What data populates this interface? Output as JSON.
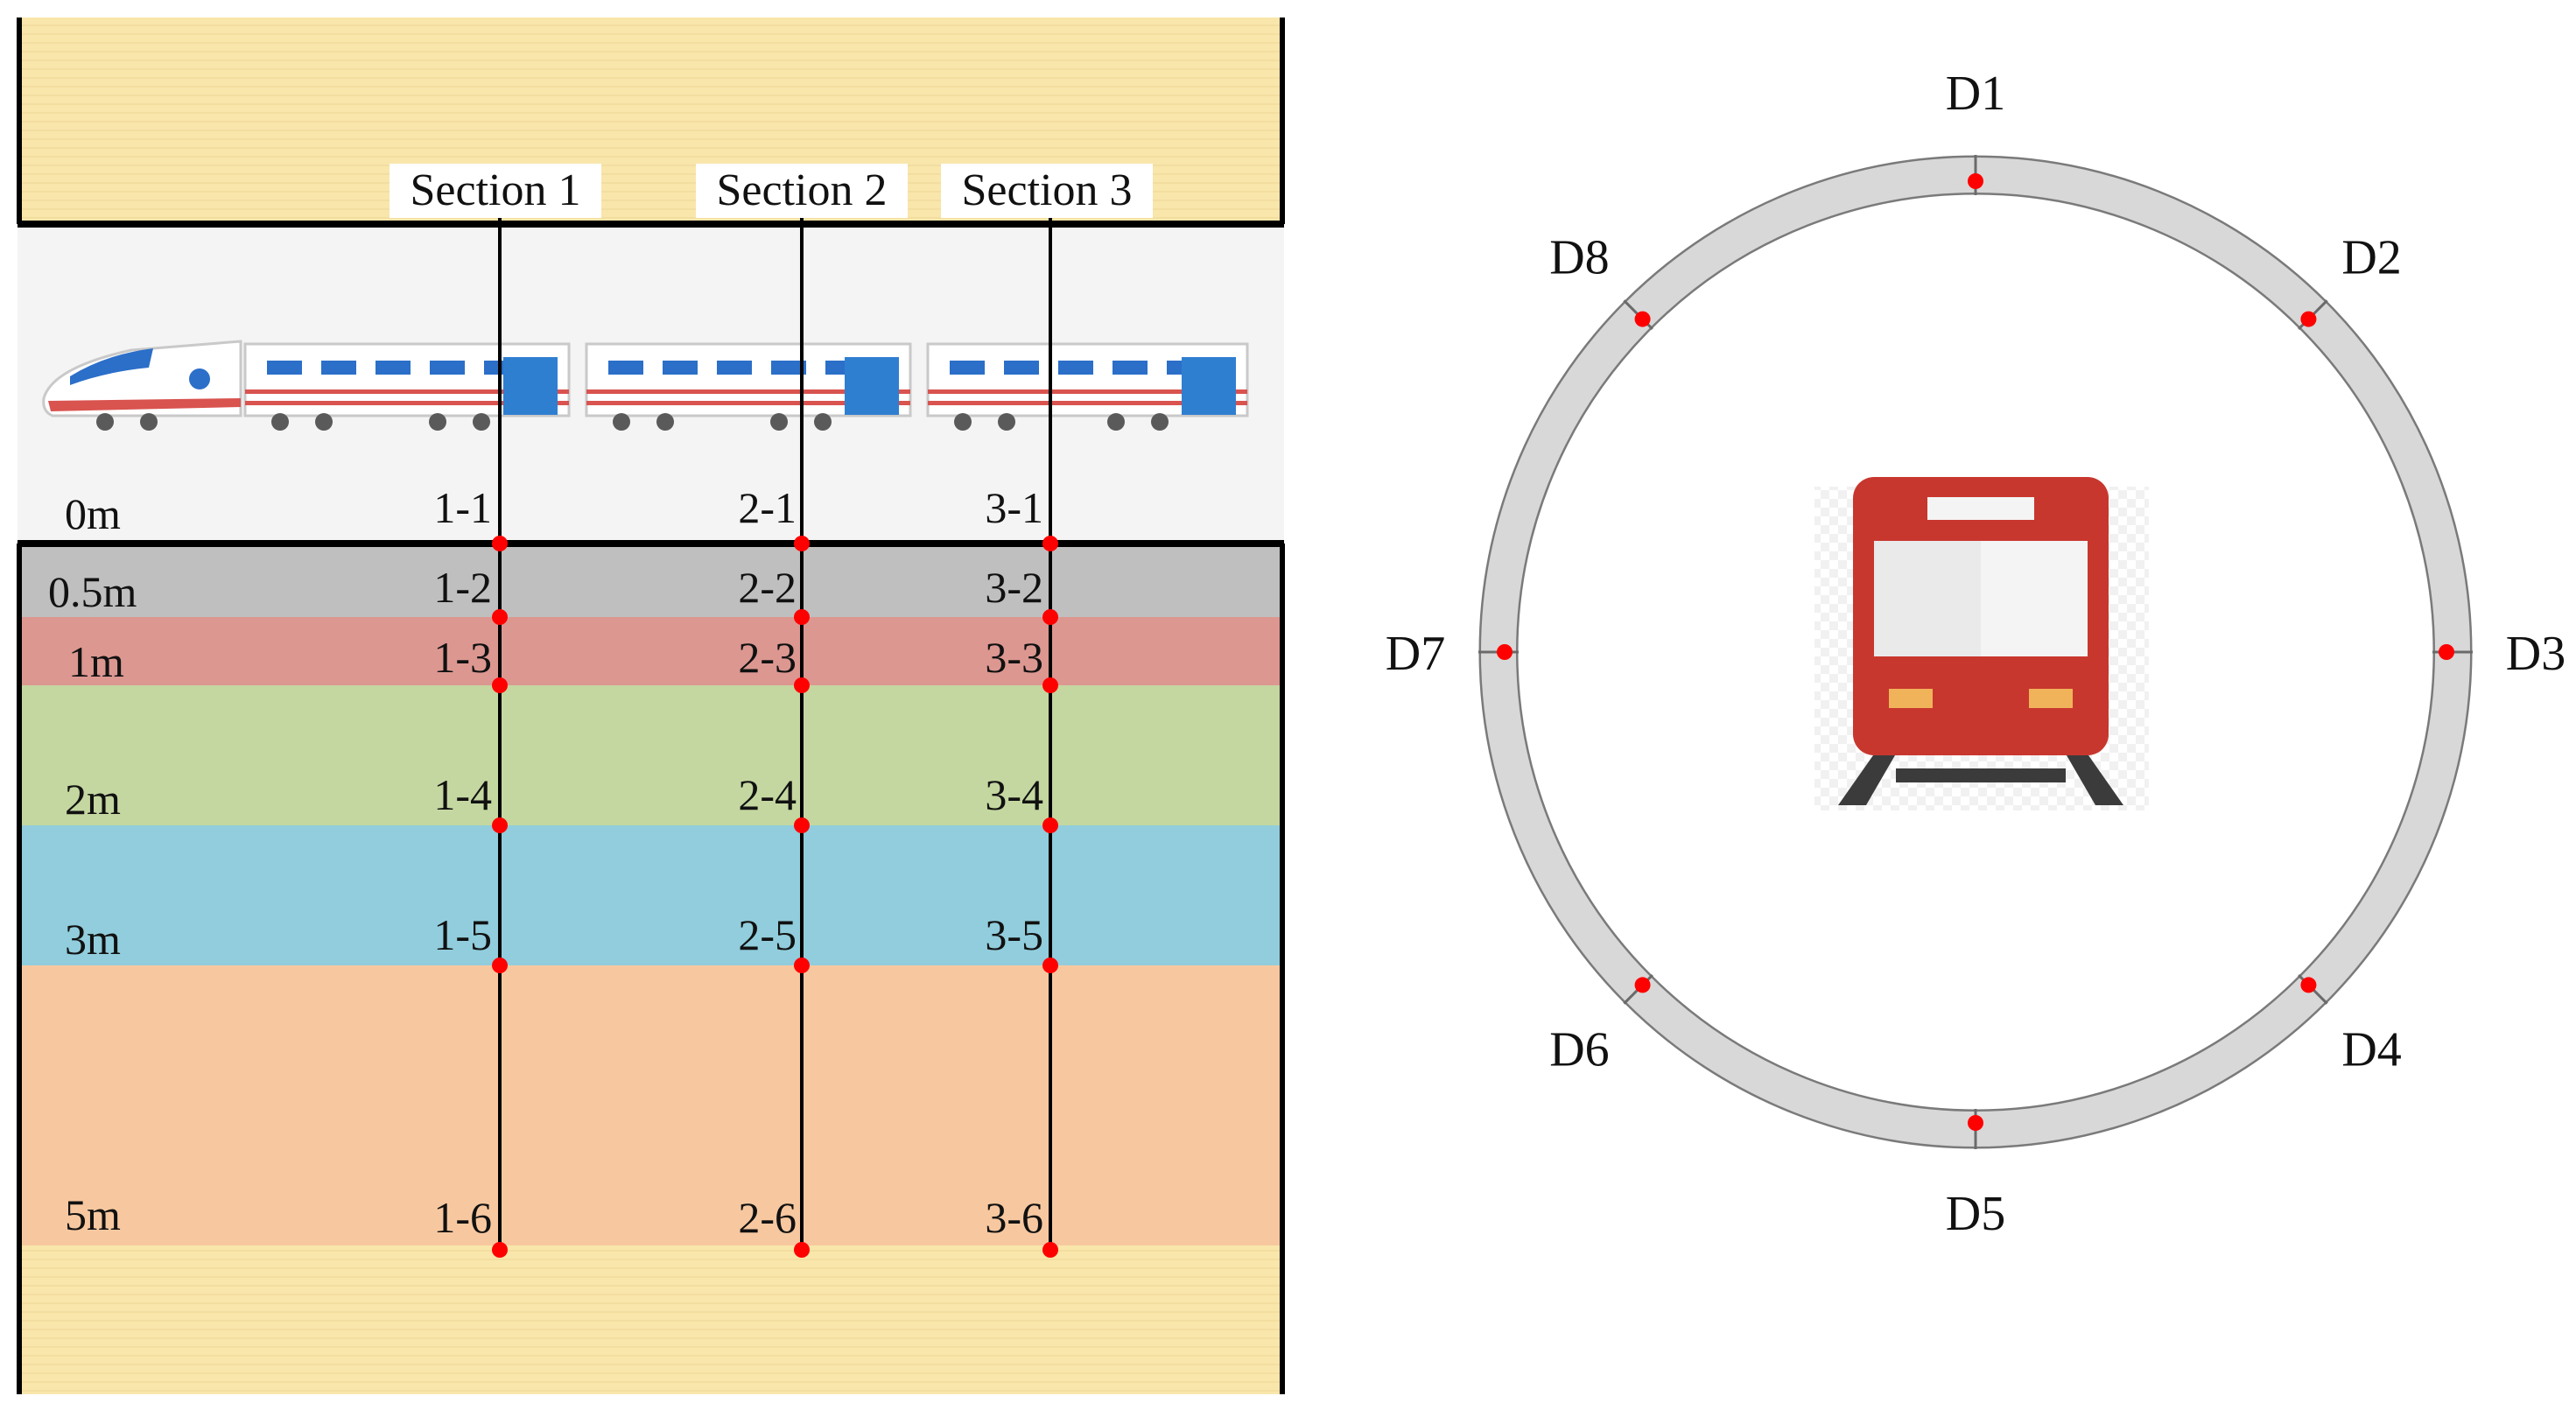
{
  "colors": {
    "ground": "#f9e6ab",
    "ground_stripe": "#efd99a",
    "tunnel_bg": "#f4f4f4",
    "layer_0_5m": "#bfbfbf",
    "layer_1m": "#dc9791",
    "layer_2m": "#c4d7a0",
    "layer_3m": "#91cddc",
    "layer_5m": "#f7c8a0",
    "marker": "#ff0000",
    "ring": "#d8d8d8",
    "ring_stroke": "#7a7a7a",
    "train_icon_red": "#c8372e",
    "train_icon_rail": "#3b3b3b"
  },
  "sections": [
    {
      "label": "Section 1",
      "points": [
        "1-1",
        "1-2",
        "1-3",
        "1-4",
        "1-5",
        "1-6"
      ]
    },
    {
      "label": "Section 2",
      "points": [
        "2-1",
        "2-2",
        "2-3",
        "2-4",
        "2-5",
        "2-6"
      ]
    },
    {
      "label": "Section 3",
      "points": [
        "3-1",
        "3-2",
        "3-3",
        "3-4",
        "3-5",
        "3-6"
      ]
    }
  ],
  "depth_labels": [
    "0m",
    "0.5m",
    "1m",
    "2m",
    "3m",
    "5m"
  ],
  "sensors": [
    {
      "label": "D1",
      "angle_deg": 0
    },
    {
      "label": "D2",
      "angle_deg": 45
    },
    {
      "label": "D3",
      "angle_deg": 90
    },
    {
      "label": "D4",
      "angle_deg": 135
    },
    {
      "label": "D5",
      "angle_deg": 180
    },
    {
      "label": "D6",
      "angle_deg": 225
    },
    {
      "label": "D7",
      "angle_deg": 270
    },
    {
      "label": "D8",
      "angle_deg": 315
    }
  ],
  "icons": {
    "train_side": "high-speed-train-illustration",
    "train_front": "train-front-icon"
  }
}
